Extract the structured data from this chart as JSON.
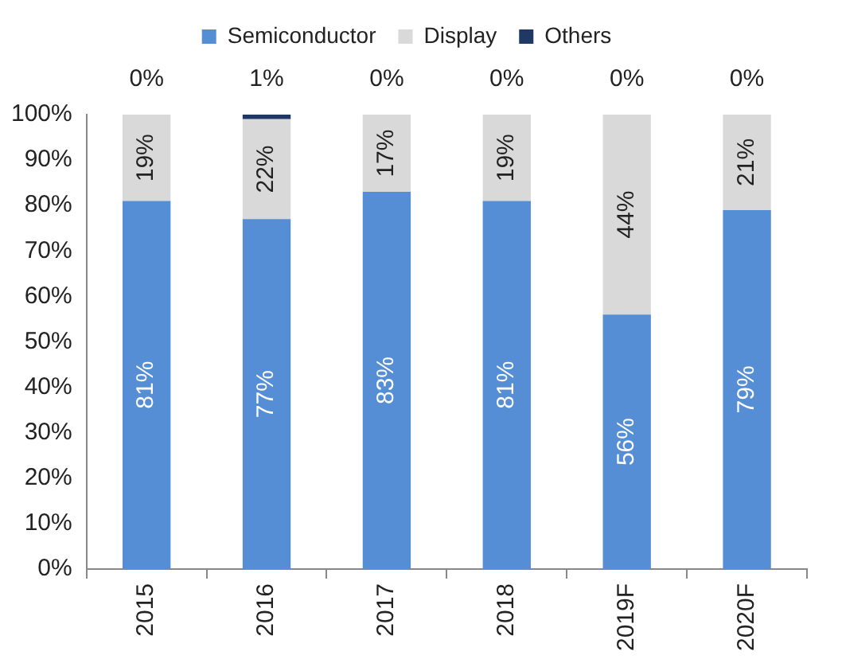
{
  "chart_data": {
    "type": "bar",
    "stacked": true,
    "categories": [
      "2015",
      "2016",
      "2017",
      "2018",
      "2019F",
      "2020F"
    ],
    "series": [
      {
        "name": "Semiconductor",
        "color": "#558ed5",
        "values": [
          81,
          77,
          83,
          81,
          56,
          79
        ],
        "value_labels": [
          "81%",
          "77%",
          "83%",
          "81%",
          "56%",
          "79%"
        ]
      },
      {
        "name": "Display",
        "color": "#d9d9d9",
        "values": [
          19,
          22,
          17,
          19,
          44,
          21
        ],
        "value_labels": [
          "19%",
          "22%",
          "17%",
          "19%",
          "44%",
          "21%"
        ]
      },
      {
        "name": "Others",
        "color": "#1f3864",
        "values": [
          0,
          1,
          0,
          0,
          0,
          0
        ],
        "value_labels": [
          "0%",
          "1%",
          "0%",
          "0%",
          "0%",
          "0%"
        ]
      }
    ],
    "ylim": [
      0,
      100
    ],
    "yticks": [
      {
        "value": 0,
        "label": "0%"
      },
      {
        "value": 10,
        "label": "10%"
      },
      {
        "value": 20,
        "label": "20%"
      },
      {
        "value": 30,
        "label": "30%"
      },
      {
        "value": 40,
        "label": "40%"
      },
      {
        "value": 50,
        "label": "50%"
      },
      {
        "value": 60,
        "label": "60%"
      },
      {
        "value": 70,
        "label": "70%"
      },
      {
        "value": 80,
        "label": "80%"
      },
      {
        "value": 90,
        "label": "90%"
      },
      {
        "value": 100,
        "label": "100%"
      }
    ],
    "legend": "top",
    "grid": false
  }
}
